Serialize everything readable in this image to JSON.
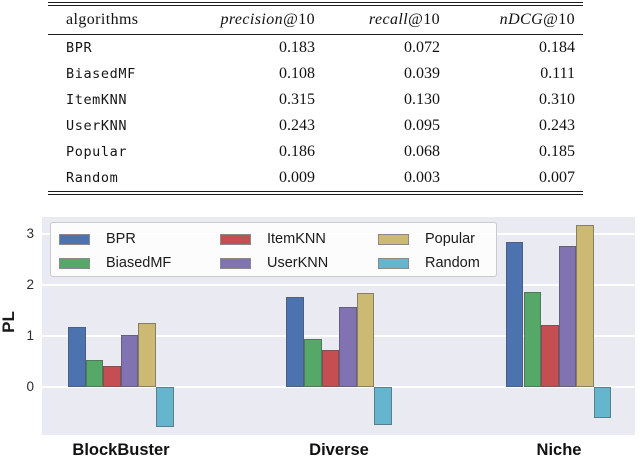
{
  "table": {
    "headers": {
      "algorithms": "algorithms",
      "precision": "precision",
      "recall": "recall",
      "ndcg": "nDCG",
      "suffix": "@10"
    },
    "rows": [
      {
        "name": "BPR",
        "precision": "0.183",
        "recall": "0.072",
        "ndcg": "0.184"
      },
      {
        "name": "BiasedMF",
        "precision": "0.108",
        "recall": "0.039",
        "ndcg": "0.111"
      },
      {
        "name": "ItemKNN",
        "precision": "0.315",
        "recall": "0.130",
        "ndcg": "0.310"
      },
      {
        "name": "UserKNN",
        "precision": "0.243",
        "recall": "0.095",
        "ndcg": "0.243"
      },
      {
        "name": "Popular",
        "precision": "0.186",
        "recall": "0.068",
        "ndcg": "0.185"
      },
      {
        "name": "Random",
        "precision": "0.009",
        "recall": "0.003",
        "ndcg": "0.007"
      }
    ]
  },
  "chart_data": {
    "type": "bar",
    "title": "",
    "xlabel": "",
    "ylabel": "PL",
    "categories": [
      "BlockBuster",
      "Diverse",
      "Niche"
    ],
    "yticks": [
      0,
      1,
      2,
      3
    ],
    "ylim": [
      -0.95,
      3.35
    ],
    "grid": true,
    "legend_position": "upper left",
    "plot_background": "#EAEAF2",
    "grid_color": "#FFFFFF",
    "series": [
      {
        "name": "BPR",
        "color": "#4C72B0",
        "values": [
          1.18,
          1.77,
          2.84
        ]
      },
      {
        "name": "BiasedMF",
        "color": "#55A868",
        "values": [
          0.53,
          0.93,
          1.87
        ]
      },
      {
        "name": "ItemKNN",
        "color": "#C44E52",
        "values": [
          0.4,
          0.72,
          1.21
        ]
      },
      {
        "name": "UserKNN",
        "color": "#8172B2",
        "values": [
          1.02,
          1.57,
          2.77
        ]
      },
      {
        "name": "Popular",
        "color": "#CCB974",
        "values": [
          1.25,
          1.85,
          3.18
        ]
      },
      {
        "name": "Random",
        "color": "#64B5CD",
        "values": [
          -0.79,
          -0.75,
          -0.61
        ]
      }
    ]
  }
}
